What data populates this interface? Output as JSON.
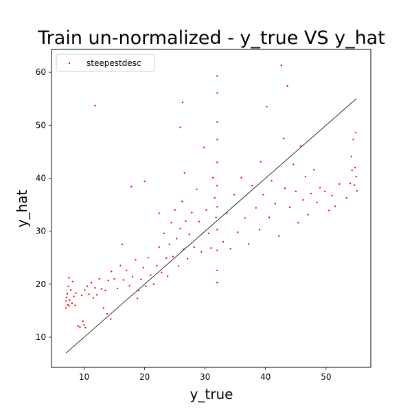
{
  "chart_data": {
    "type": "scatter",
    "title": "Train un-normalized - y_true VS y_hat",
    "xlabel": "y_true",
    "ylabel": "y_hat",
    "xlim": [
      4.6,
      57.4
    ],
    "ylim": [
      4.3,
      64.3
    ],
    "xticks": [
      10,
      20,
      30,
      40,
      50
    ],
    "yticks": [
      10,
      20,
      30,
      40,
      50,
      60
    ],
    "grid": false,
    "legend": {
      "entries": [
        "steepestdesc"
      ],
      "placement": "top-left"
    },
    "colors": {
      "points": "#ff0000",
      "reference_line": "#000000"
    },
    "reference_line": {
      "x": [
        7,
        55
      ],
      "y": [
        7,
        55
      ]
    },
    "series": [
      {
        "name": "steepestdesc",
        "note_clusters_approximate": true,
        "points": [
          [
            7.0,
            15.5
          ],
          [
            7.0,
            16.8
          ],
          [
            7.1,
            17.5
          ],
          [
            7.2,
            18.2
          ],
          [
            7.3,
            16.1
          ],
          [
            7.4,
            19.6
          ],
          [
            7.5,
            15.9
          ],
          [
            7.5,
            21.2
          ],
          [
            7.6,
            17.0
          ],
          [
            7.8,
            18.9
          ],
          [
            8.0,
            16.4
          ],
          [
            8.1,
            20.5
          ],
          [
            8.3,
            17.7
          ],
          [
            8.5,
            16.0
          ],
          [
            8.6,
            18.3
          ],
          [
            9.0,
            12.1
          ],
          [
            9.3,
            11.9
          ],
          [
            9.8,
            13.0
          ],
          [
            10.0,
            12.3
          ],
          [
            10.2,
            11.8
          ],
          [
            9.6,
            17.9
          ],
          [
            10.1,
            18.9
          ],
          [
            10.5,
            19.6
          ],
          [
            10.8,
            18.1
          ],
          [
            11.2,
            20.3
          ],
          [
            11.5,
            17.4
          ],
          [
            11.8,
            19.3
          ],
          [
            12.1,
            18.0
          ],
          [
            12.5,
            21.0
          ],
          [
            12.9,
            19.1
          ],
          [
            11.8,
            53.7
          ],
          [
            13.2,
            15.5
          ],
          [
            13.8,
            14.4
          ],
          [
            14.4,
            13.4
          ],
          [
            13.5,
            18.8
          ],
          [
            14.0,
            20.7
          ],
          [
            14.5,
            22.4
          ],
          [
            15.0,
            21.0
          ],
          [
            15.5,
            19.2
          ],
          [
            16.0,
            23.5
          ],
          [
            16.5,
            20.8
          ],
          [
            17.0,
            22.6
          ],
          [
            17.5,
            19.7
          ],
          [
            18.0,
            21.4
          ],
          [
            18.5,
            24.6
          ],
          [
            16.3,
            27.5
          ],
          [
            17.8,
            38.4
          ],
          [
            18.8,
            17.3
          ],
          [
            19.0,
            18.8
          ],
          [
            19.4,
            20.9
          ],
          [
            19.8,
            23.1
          ],
          [
            20.2,
            19.6
          ],
          [
            20.6,
            25.0
          ],
          [
            21.0,
            21.7
          ],
          [
            21.5,
            20.0
          ],
          [
            22.0,
            23.5
          ],
          [
            22.4,
            27.0
          ],
          [
            22.8,
            22.2
          ],
          [
            23.2,
            29.6
          ],
          [
            23.6,
            24.9
          ],
          [
            20.0,
            39.4
          ],
          [
            22.4,
            33.4
          ],
          [
            23.8,
            21.5
          ],
          [
            24.1,
            27.5
          ],
          [
            24.4,
            31.6
          ],
          [
            24.7,
            25.2
          ],
          [
            25.0,
            34.0
          ],
          [
            25.3,
            28.6
          ],
          [
            25.6,
            23.4
          ],
          [
            25.9,
            30.5
          ],
          [
            26.2,
            35.6
          ],
          [
            26.5,
            26.6
          ],
          [
            26.8,
            31.9
          ],
          [
            27.1,
            24.8
          ],
          [
            27.4,
            29.4
          ],
          [
            25.9,
            49.6
          ],
          [
            26.3,
            54.3
          ],
          [
            26.6,
            41.0
          ],
          [
            27.8,
            33.5
          ],
          [
            28.2,
            27.0
          ],
          [
            28.6,
            37.9
          ],
          [
            29.0,
            31.8
          ],
          [
            29.4,
            26.1
          ],
          [
            29.8,
            45.8
          ],
          [
            30.2,
            34.0
          ],
          [
            30.6,
            29.6
          ],
          [
            31.0,
            26.8
          ],
          [
            31.3,
            40.1
          ],
          [
            31.6,
            36.3
          ],
          [
            31.8,
            32.6
          ],
          [
            32.0,
            59.3
          ],
          [
            32.0,
            56.1
          ],
          [
            32.0,
            50.6
          ],
          [
            32.0,
            47.3
          ],
          [
            32.0,
            43.0
          ],
          [
            32.0,
            38.6
          ],
          [
            32.0,
            34.6
          ],
          [
            32.0,
            30.3
          ],
          [
            32.0,
            26.4
          ],
          [
            32.0,
            22.6
          ],
          [
            32.0,
            20.3
          ],
          [
            33.0,
            28.0
          ],
          [
            33.6,
            33.4
          ],
          [
            34.2,
            26.7
          ],
          [
            34.8,
            36.9
          ],
          [
            35.4,
            29.8
          ],
          [
            36.0,
            40.1
          ],
          [
            36.6,
            32.5
          ],
          [
            37.2,
            27.6
          ],
          [
            37.8,
            38.6
          ],
          [
            38.4,
            34.4
          ],
          [
            39.0,
            30.3
          ],
          [
            39.2,
            43.1
          ],
          [
            39.6,
            36.9
          ],
          [
            40.2,
            53.5
          ],
          [
            40.6,
            32.6
          ],
          [
            41.0,
            39.5
          ],
          [
            41.6,
            35.2
          ],
          [
            42.2,
            29.1
          ],
          [
            42.6,
            61.3
          ],
          [
            43.0,
            47.5
          ],
          [
            43.2,
            38.1
          ],
          [
            43.6,
            57.4
          ],
          [
            44.0,
            34.5
          ],
          [
            44.6,
            42.6
          ],
          [
            45.0,
            37.5
          ],
          [
            45.4,
            31.6
          ],
          [
            45.8,
            46.1
          ],
          [
            46.2,
            35.9
          ],
          [
            46.6,
            40.3
          ],
          [
            47.0,
            33.1
          ],
          [
            47.5,
            37.1
          ],
          [
            48.0,
            41.6
          ],
          [
            48.5,
            35.4
          ],
          [
            49.0,
            38.2
          ],
          [
            49.8,
            37.5
          ],
          [
            50.5,
            33.9
          ],
          [
            51.0,
            36.7
          ],
          [
            51.5,
            34.7
          ],
          [
            52.2,
            38.9
          ],
          [
            53.4,
            36.3
          ],
          [
            54.0,
            39.0
          ],
          [
            54.2,
            44.1
          ],
          [
            54.3,
            41.5
          ],
          [
            54.5,
            47.3
          ],
          [
            54.7,
            38.7
          ],
          [
            54.8,
            42.0
          ],
          [
            54.9,
            48.6
          ],
          [
            55.0,
            40.3
          ],
          [
            55.1,
            37.6
          ]
        ]
      }
    ]
  }
}
